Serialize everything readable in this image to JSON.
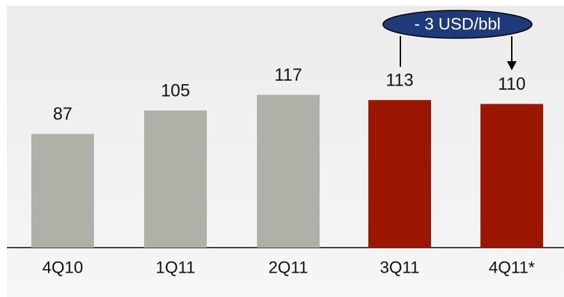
{
  "chart_data": {
    "type": "bar",
    "categories": [
      "4Q10",
      "1Q11",
      "2Q11",
      "3Q11",
      "4Q11*"
    ],
    "values": [
      87,
      105,
      117,
      113,
      110
    ],
    "colors": [
      "#b0b0a9",
      "#b0b0a9",
      "#b0b0a9",
      "#9b1600",
      "#9b1600"
    ],
    "ylim": [
      0,
      180
    ],
    "annotation": "- 3 USD/bbl",
    "annotation_color": "#1f3a78"
  }
}
